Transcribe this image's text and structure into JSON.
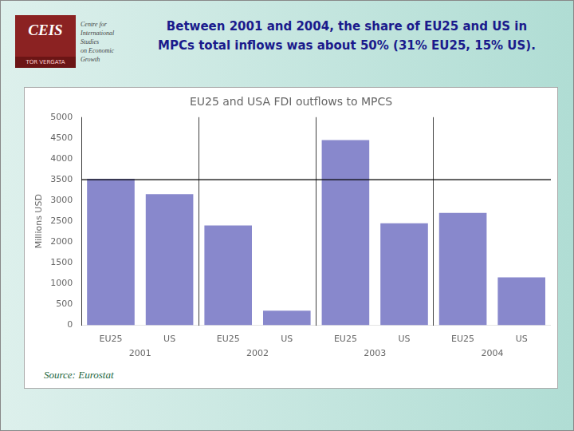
{
  "chart_data": {
    "type": "bar",
    "title": "EU25 and USA FDI outflows to MPCS",
    "subtitle": [
      "Between 2001 and 2004, the share of EU25 and US in",
      "MPCs total inflows was about 50% (31% EU25, 15% US)."
    ],
    "ylabel": "Millions USD",
    "categories": [
      "2001",
      "2002",
      "2003",
      "2004"
    ],
    "series": [
      {
        "name": "EU25",
        "color": "#8888cc",
        "values": [
          3520,
          2400,
          4450,
          2700
        ]
      },
      {
        "name": "US",
        "color": "#8888cc",
        "values": [
          3150,
          350,
          2450,
          1150
        ]
      }
    ],
    "ylim": [
      0,
      5000
    ],
    "yticks": [
      0,
      500,
      1000,
      1500,
      2000,
      2500,
      3000,
      3500,
      4000,
      4500,
      5000
    ],
    "grid": false,
    "legend": false,
    "reference_line": {
      "y": 3500,
      "color": "#000000"
    },
    "annotations": [
      "Source: Eurostat"
    ],
    "logo": [
      "CEIS",
      "TOR VERGATA",
      "Centre for",
      "International",
      "Studies",
      "on Economic",
      "Growth"
    ]
  }
}
